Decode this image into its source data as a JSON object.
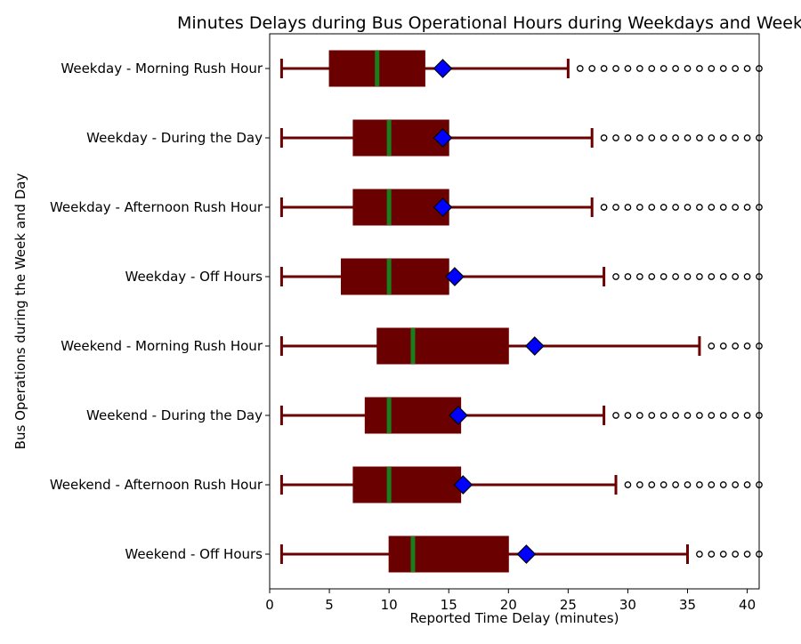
{
  "chart_data": {
    "type": "boxplot",
    "orientation": "horizontal",
    "title": "Minutes Delays during Bus Operational Hours during Weekdays and Weekends",
    "xlabel": "Reported Time Delay (minutes)",
    "ylabel": "Bus Operations during the Week and Day",
    "xlim": [
      0,
      41
    ],
    "xticks": [
      0,
      5,
      10,
      15,
      20,
      25,
      30,
      35,
      40
    ],
    "grid": false,
    "legend": "none",
    "colors": {
      "box_fill": "#6b0000",
      "whisker": "#6b0000",
      "median": "#1a7f1a",
      "mean_marker": "#0000ff",
      "mean_marker_edge": "#000000",
      "outlier_edge": "#000000"
    },
    "categories": [
      "Weekday - Morning Rush Hour",
      "Weekday - During the Day",
      "Weekday - Afternoon Rush Hour",
      "Weekday - Off Hours",
      "Weekend - Morning Rush Hour",
      "Weekend - During the Day",
      "Weekend - Afternoon Rush Hour",
      "Weekend - Off Hours"
    ],
    "boxes": [
      {
        "label": "Weekday - Morning Rush Hour",
        "whislo": 1,
        "q1": 5,
        "median": 9,
        "q3": 13,
        "whishi": 25,
        "mean": 14.5,
        "fliers": [
          26,
          27,
          28,
          29,
          30,
          31,
          32,
          33,
          34,
          35,
          36,
          37,
          38,
          39,
          40,
          41
        ]
      },
      {
        "label": "Weekday - During the Day",
        "whislo": 1,
        "q1": 7,
        "median": 10,
        "q3": 15,
        "whishi": 27,
        "mean": 14.5,
        "fliers": [
          28,
          29,
          30,
          31,
          32,
          33,
          34,
          35,
          36,
          37,
          38,
          39,
          40,
          41
        ]
      },
      {
        "label": "Weekday - Afternoon Rush Hour",
        "whislo": 1,
        "q1": 7,
        "median": 10,
        "q3": 15,
        "whishi": 27,
        "mean": 14.5,
        "fliers": [
          28,
          29,
          30,
          31,
          32,
          33,
          34,
          35,
          36,
          37,
          38,
          39,
          40,
          41
        ]
      },
      {
        "label": "Weekday - Off Hours",
        "whislo": 1,
        "q1": 6,
        "median": 10,
        "q3": 15,
        "whishi": 28,
        "mean": 15.5,
        "fliers": [
          29,
          30,
          31,
          32,
          33,
          34,
          35,
          36,
          37,
          38,
          39,
          40,
          41
        ]
      },
      {
        "label": "Weekend - Morning Rush Hour",
        "whislo": 1,
        "q1": 9,
        "median": 12,
        "q3": 20,
        "whishi": 36,
        "mean": 22.2,
        "fliers": [
          37,
          38,
          39,
          40,
          41
        ]
      },
      {
        "label": "Weekend - During the Day",
        "whislo": 1,
        "q1": 8,
        "median": 10,
        "q3": 16,
        "whishi": 28,
        "mean": 15.8,
        "fliers": [
          29,
          30,
          31,
          32,
          33,
          34,
          35,
          36,
          37,
          38,
          39,
          40,
          41
        ]
      },
      {
        "label": "Weekend - Afternoon Rush Hour",
        "whislo": 1,
        "q1": 7,
        "median": 10,
        "q3": 16,
        "whishi": 29,
        "mean": 16.2,
        "fliers": [
          30,
          31,
          32,
          33,
          34,
          35,
          36,
          37,
          38,
          39,
          40,
          41
        ]
      },
      {
        "label": "Weekend - Off Hours",
        "whislo": 1,
        "q1": 10,
        "median": 12,
        "q3": 20,
        "whishi": 35,
        "mean": 21.5,
        "fliers": [
          36,
          37,
          38,
          39,
          40,
          41
        ]
      }
    ]
  }
}
